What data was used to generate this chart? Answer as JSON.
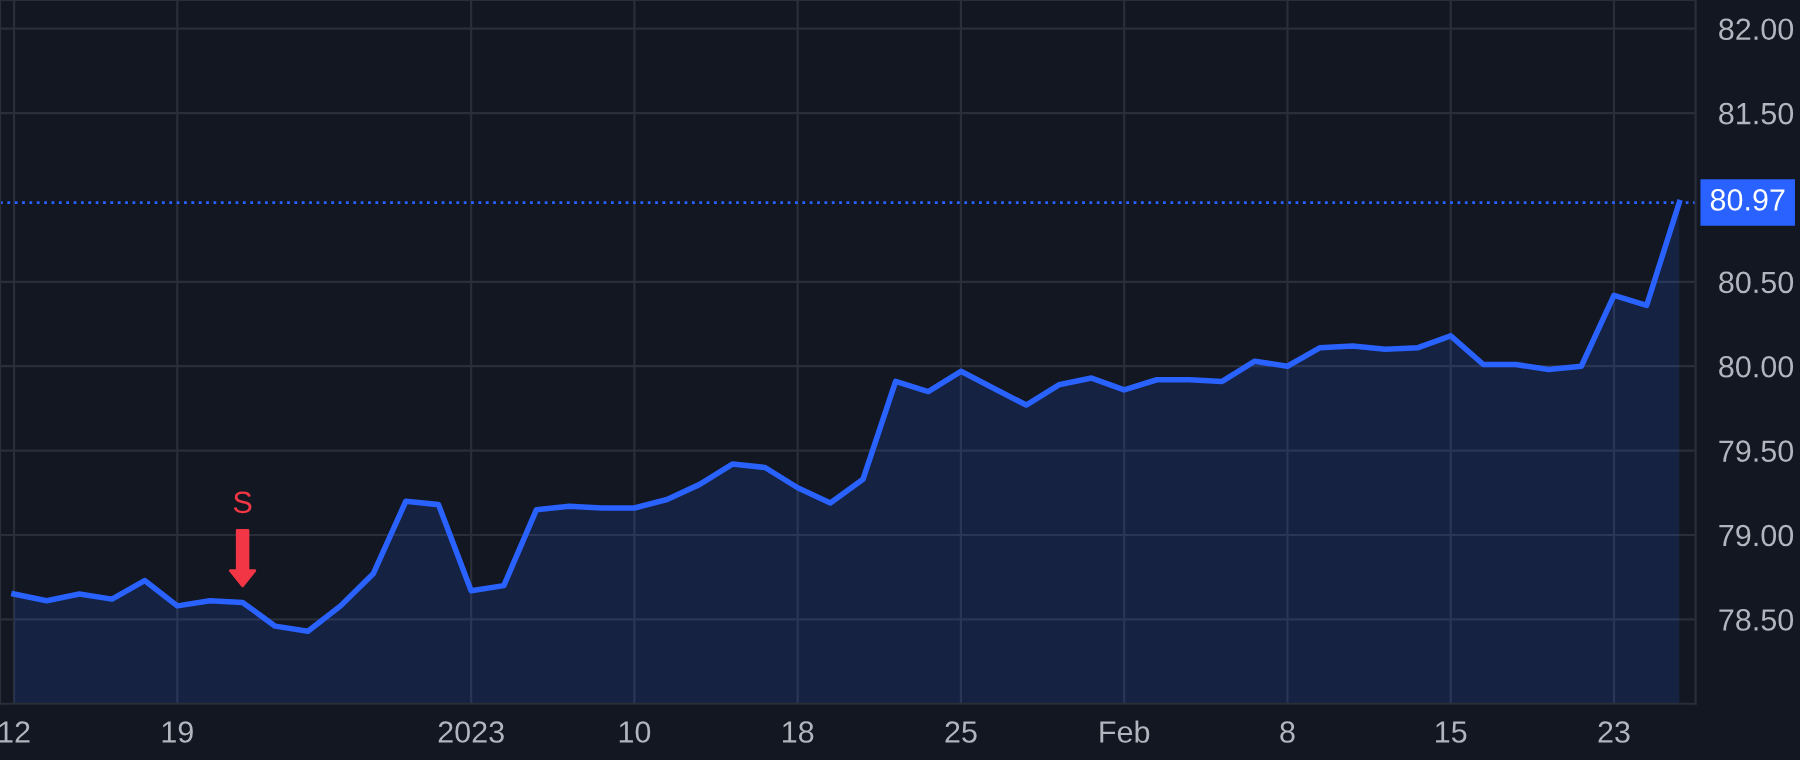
{
  "chart_data": {
    "type": "area",
    "categories": [
      "12",
      null,
      null,
      null,
      null,
      "19",
      null,
      null,
      null,
      null,
      null,
      null,
      null,
      null,
      "2023",
      null,
      null,
      null,
      null,
      "10",
      null,
      null,
      null,
      null,
      "18",
      null,
      null,
      null,
      null,
      "25",
      null,
      null,
      null,
      null,
      "Feb",
      null,
      null,
      null,
      null,
      "8",
      null,
      null,
      null,
      null,
      "15",
      null,
      null,
      null,
      null,
      "23",
      null,
      null
    ],
    "series": [
      {
        "color": "#2962ff",
        "values": [
          78.65,
          78.61,
          78.65,
          78.62,
          78.73,
          78.58,
          78.61,
          78.6,
          78.46,
          78.43,
          78.58,
          78.77,
          79.2,
          79.18,
          78.67,
          78.7,
          79.15,
          79.17,
          79.16,
          79.16,
          79.21,
          79.3,
          79.42,
          79.4,
          79.28,
          79.19,
          79.33,
          79.91,
          79.85,
          79.97,
          79.87,
          79.77,
          79.89,
          79.93,
          79.86,
          79.92,
          79.92,
          79.91,
          80.03,
          80.0,
          80.11,
          80.12,
          80.1,
          80.11,
          80.18,
          80.01,
          80.01,
          79.98,
          80.0,
          80.42,
          80.36,
          80.97
        ]
      }
    ],
    "ylim": [
      78.0,
      82.17
    ],
    "yticks": [
      {
        "value": 78.5,
        "label": "78.50"
      },
      {
        "value": 79,
        "label": "79.00"
      },
      {
        "value": 79.5,
        "label": "79.50"
      },
      {
        "value": 80,
        "label": "80.00"
      },
      {
        "value": 80.5,
        "label": "80.50"
      },
      {
        "value": 81.5,
        "label": "81.50"
      },
      {
        "value": 82,
        "label": "82.00"
      }
    ],
    "ref_lines": [
      {
        "axis": "y",
        "value": 80.97,
        "label": "80.97",
        "color": "#2962ff",
        "line_style": "dotted"
      }
    ],
    "annotations": [
      {
        "text": "S",
        "y": 78.6
      }
    ],
    "grid": true,
    "legend": false
  }
}
